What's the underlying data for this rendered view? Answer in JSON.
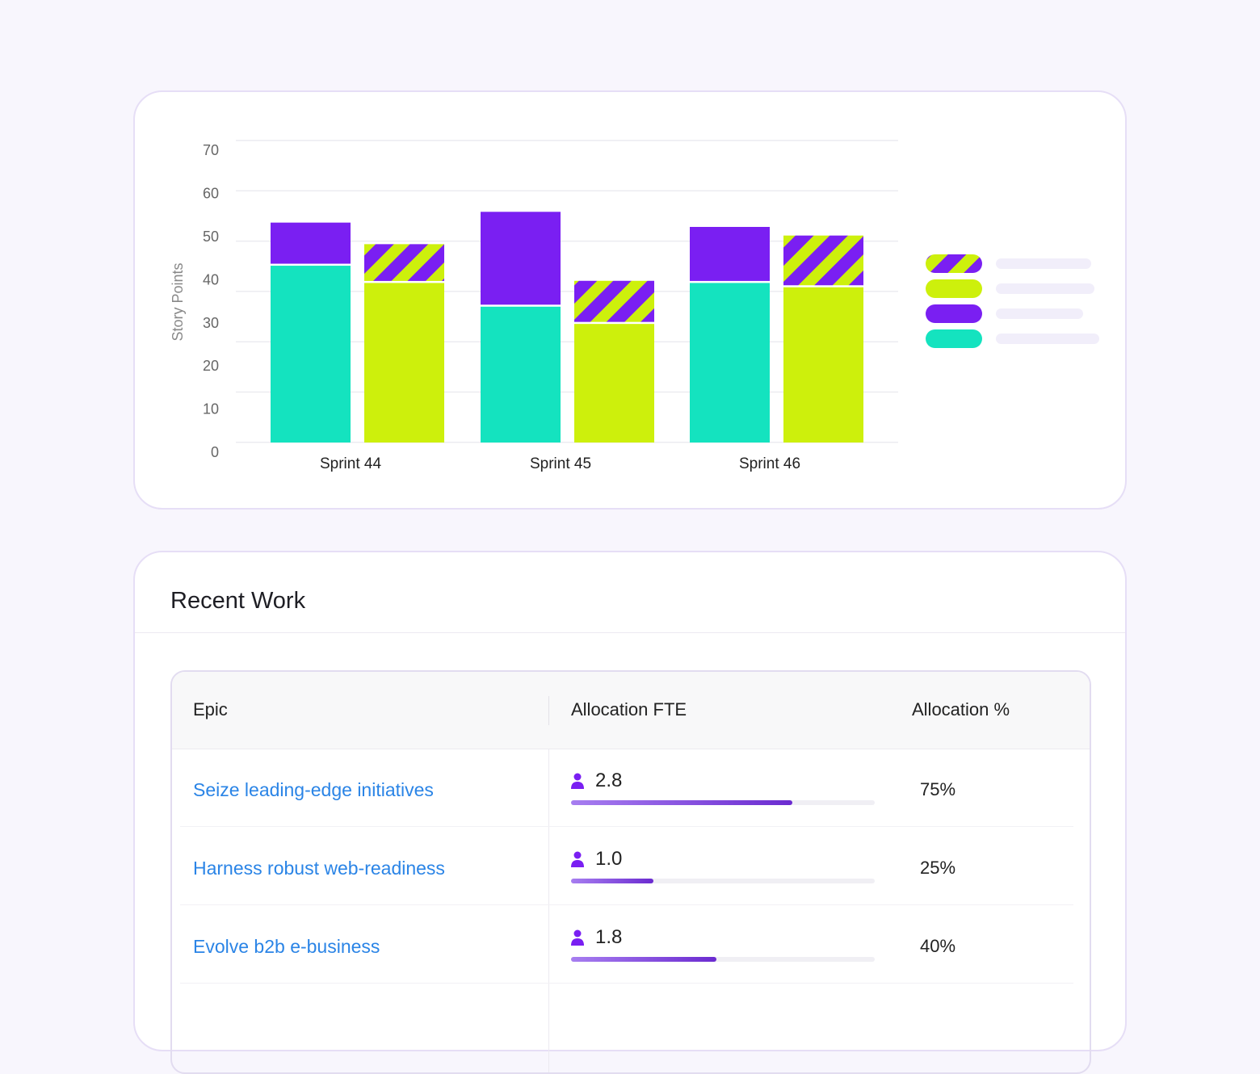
{
  "colors": {
    "teal": "#14e3bf",
    "lime": "#cdf00c",
    "purple": "#7a1ff2",
    "link": "#2a84e6"
  },
  "chart_data": {
    "type": "bar",
    "stacked": true,
    "ylabel": "Story Points",
    "ylim": [
      0,
      70
    ],
    "yticks": [
      0,
      10,
      20,
      30,
      40,
      50,
      60,
      70
    ],
    "grid": true,
    "legend": "right",
    "categories": [
      "Sprint 44",
      "Sprint 45",
      "Sprint 46"
    ],
    "groups": [
      {
        "bottom_color": "teal",
        "top_color": "purple",
        "top_pattern": "solid",
        "bottom": [
          41,
          31.5,
          37
        ],
        "top": [
          10,
          22,
          13
        ]
      },
      {
        "bottom_color": "lime",
        "top_color": "purple-lime",
        "top_pattern": "striped",
        "bottom": [
          37,
          27.5,
          36
        ],
        "top": [
          9,
          10,
          12
        ]
      }
    ],
    "legend_entries": [
      {
        "swatch": "striped"
      },
      {
        "swatch": "lime"
      },
      {
        "swatch": "purple"
      },
      {
        "swatch": "teal"
      }
    ]
  },
  "work": {
    "title": "Recent Work",
    "columns": [
      "Epic",
      "Allocation FTE",
      "Allocation %"
    ],
    "rows": [
      {
        "epic": "Seize leading-edge initiatives",
        "fte": "2.8",
        "pct": "75%",
        "bar": 73
      },
      {
        "epic": "Harness robust web-readiness",
        "fte": "1.0",
        "pct": "25%",
        "bar": 27
      },
      {
        "epic": "Evolve b2b e-business",
        "fte": "1.8",
        "pct": "40%",
        "bar": 48
      }
    ]
  }
}
